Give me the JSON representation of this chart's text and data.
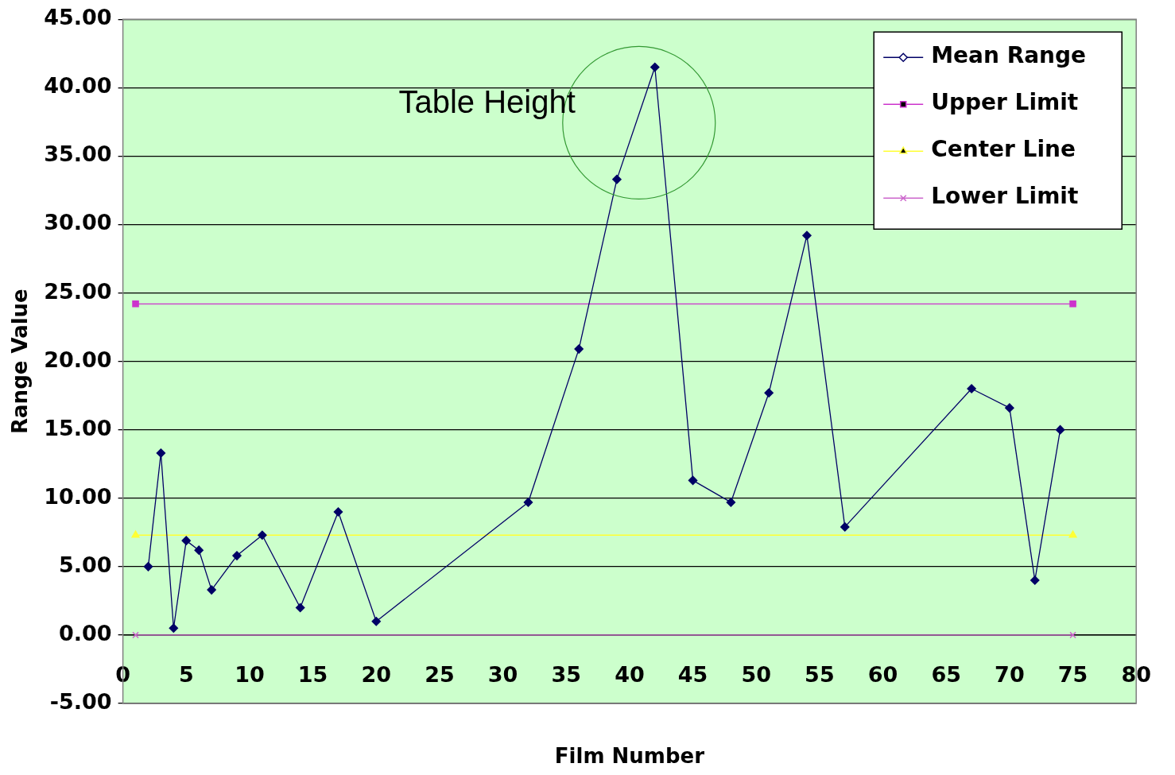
{
  "chart_data": {
    "type": "line",
    "xlabel": "Film Number",
    "ylabel": "Range Value",
    "xlim": [
      0,
      80
    ],
    "xticks": [
      0,
      5,
      10,
      15,
      20,
      25,
      30,
      35,
      40,
      45,
      50,
      55,
      60,
      65,
      70,
      75,
      80
    ],
    "ylim": [
      -5,
      45
    ],
    "yticks": [
      {
        "value": -5,
        "label": "-5.00"
      },
      {
        "value": 0,
        "label": "0.00"
      },
      {
        "value": 5,
        "label": "5.00"
      },
      {
        "value": 10,
        "label": "10.00"
      },
      {
        "value": 15,
        "label": "15.00"
      },
      {
        "value": 20,
        "label": "20.00"
      },
      {
        "value": 25,
        "label": "25.00"
      },
      {
        "value": 30,
        "label": "30.00"
      },
      {
        "value": 35,
        "label": "35.00"
      },
      {
        "value": 40,
        "label": "40.00"
      },
      {
        "value": 45,
        "label": "45.00"
      }
    ],
    "grid": "y",
    "legend": "top right",
    "annotations": [
      {
        "text": "Table Height",
        "x": 42,
        "y": 41.5
      }
    ],
    "series": [
      {
        "name": "Mean Range",
        "color": "#000066",
        "marker": "diamond",
        "x": [
          2,
          3,
          4,
          5,
          6,
          7,
          9,
          11,
          14,
          17,
          20,
          32,
          36,
          39,
          42,
          45,
          48,
          51,
          54,
          57,
          67,
          70,
          72,
          74
        ],
        "values": [
          5.0,
          13.3,
          0.5,
          6.9,
          6.2,
          3.3,
          5.8,
          7.3,
          2.0,
          9.0,
          1.0,
          9.7,
          20.9,
          33.3,
          41.5,
          11.3,
          9.7,
          17.7,
          29.2,
          7.9,
          18.0,
          16.6,
          4.0,
          15.0
        ]
      },
      {
        "name": "Upper Limit",
        "color": "#cc33cc",
        "marker": "square",
        "x": [
          1,
          75
        ],
        "values": [
          24.2,
          24.2
        ]
      },
      {
        "name": "Center Line",
        "color": "#ffff33",
        "marker": "triangle",
        "x": [
          1,
          75
        ],
        "values": [
          7.3,
          7.3
        ]
      },
      {
        "name": "Lower Limit",
        "color": "#cc66cc",
        "marker": "cross",
        "x": [
          1,
          75
        ],
        "values": [
          0,
          0
        ]
      }
    ]
  }
}
